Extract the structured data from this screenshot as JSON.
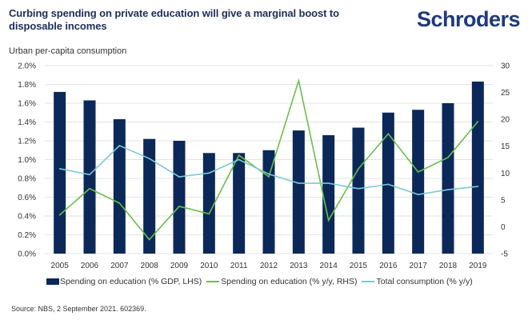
{
  "header": {
    "title": "Curbing spending on private education will give a marginal boost to disposable incomes",
    "logo": "Schroders"
  },
  "source": "Source: NBS, 2 September 2021. 602369.",
  "chart_data": {
    "type": "bar",
    "title": "Curbing spending on private education will give a marginal boost to disposable incomes",
    "subtitle": "Urban per-capita consumption",
    "xlabel": "",
    "ylabel": "",
    "categories": [
      "2005",
      "2006",
      "2007",
      "2008",
      "2009",
      "2010",
      "2011",
      "2012",
      "2013",
      "2014",
      "2015",
      "2016",
      "2017",
      "2018",
      "2019"
    ],
    "y_left": {
      "ylim": [
        0,
        2.0
      ],
      "ticks": [
        0.0,
        0.2,
        0.4,
        0.6,
        0.8,
        1.0,
        1.2,
        1.4,
        1.6,
        1.8,
        2.0
      ],
      "tick_labels": [
        "0.0%",
        "0.2%",
        "0.4%",
        "0.6%",
        "0.8%",
        "1.0%",
        "1.2%",
        "1.4%",
        "1.6%",
        "1.8%",
        "2.0%"
      ]
    },
    "y_right": {
      "ylim": [
        -5,
        30
      ],
      "ticks": [
        -5,
        0,
        5,
        10,
        15,
        20,
        25,
        30
      ],
      "tick_labels": [
        "-5",
        "0",
        "5",
        "10",
        "15",
        "20",
        "25",
        "30"
      ]
    },
    "grid": true,
    "legend_position": "bottom",
    "series": [
      {
        "name": "Spending on education (% GDP, LHS)",
        "type": "bar",
        "axis": "left",
        "color": "#0b2859",
        "values": [
          1.72,
          1.63,
          1.43,
          1.22,
          1.2,
          1.07,
          1.07,
          1.1,
          1.31,
          1.26,
          1.34,
          1.5,
          1.53,
          1.6,
          1.83
        ]
      },
      {
        "name": "Spending on education (% y/y, RHS)",
        "type": "line",
        "axis": "right",
        "color": "#6abf4b",
        "values": [
          2.2,
          7.1,
          4.4,
          -2.4,
          3.8,
          2.4,
          13.3,
          9.3,
          27.2,
          1.2,
          10.8,
          17.3,
          10.2,
          12.9,
          19.6
        ]
      },
      {
        "name": "Total consumption (% y/y)",
        "type": "line",
        "axis": "right",
        "color": "#7ec8d8",
        "values": [
          10.8,
          9.7,
          15.1,
          12.7,
          9.3,
          10.0,
          12.5,
          9.8,
          8.1,
          8.1,
          7.1,
          7.9,
          6.0,
          6.9,
          7.5
        ]
      }
    ]
  }
}
